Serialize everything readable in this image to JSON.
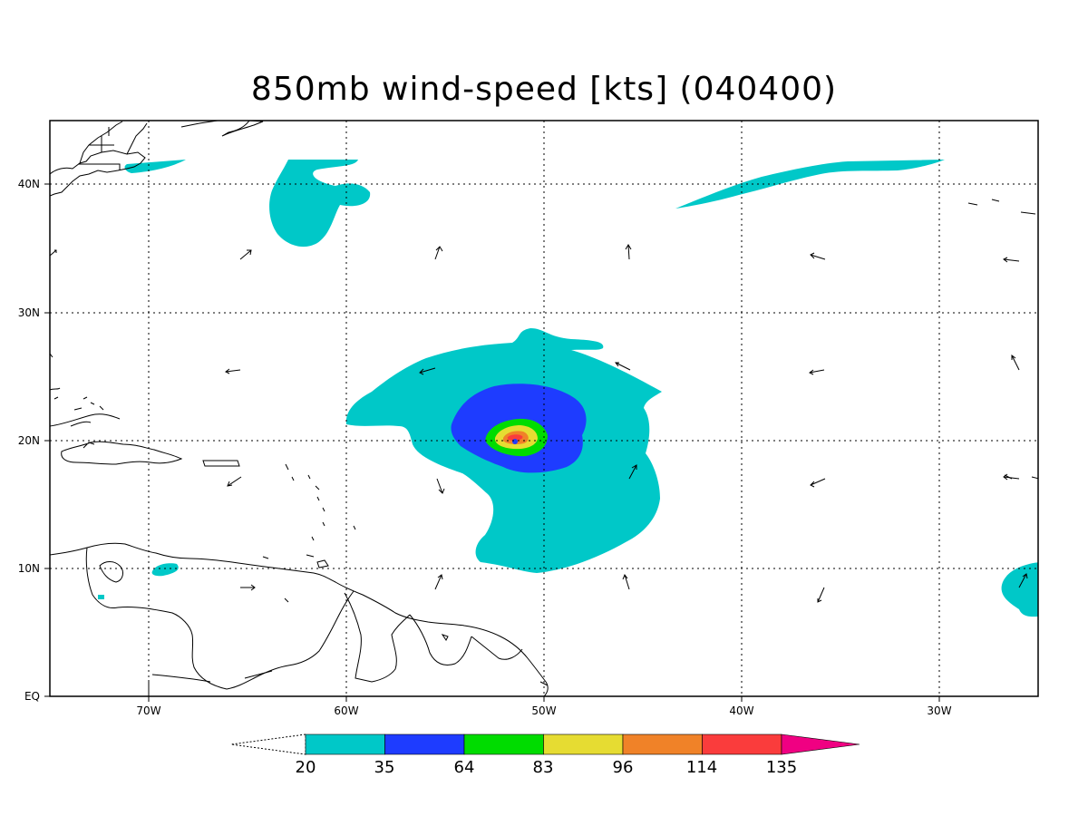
{
  "title": "850mb wind-speed [kts] (040400)",
  "lon_labels": [
    "70W",
    "60W",
    "50W",
    "40W",
    "30W"
  ],
  "lat_labels": [
    "40N",
    "30N",
    "20N",
    "10N",
    "EQ"
  ],
  "colorbar": {
    "levels": [
      "20",
      "35",
      "64",
      "83",
      "96",
      "114",
      "135"
    ],
    "colors": [
      "#00c8c8",
      "#1e3cff",
      "#00dc00",
      "#e6dc32",
      "#f08228",
      "#fa3c3c",
      "#f00082"
    ]
  }
}
